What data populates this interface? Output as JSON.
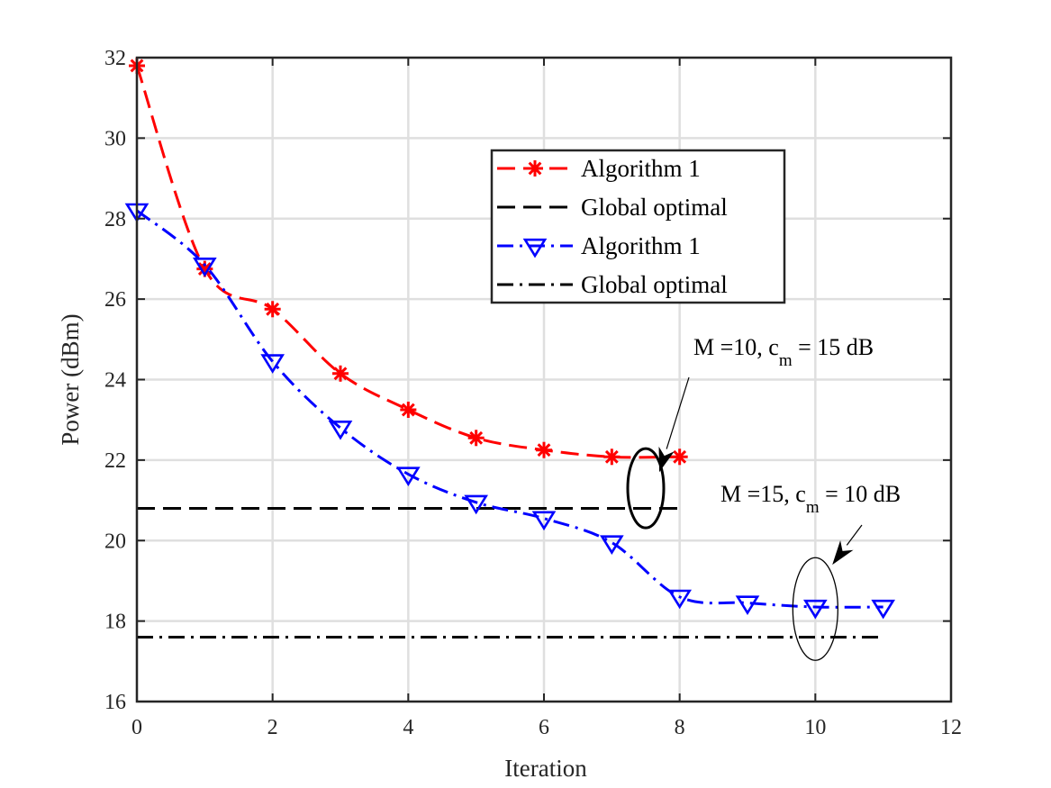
{
  "chart_data": {
    "type": "line",
    "xlabel": "Iteration",
    "ylabel": "Power (dBm)",
    "xlim": [
      0,
      12
    ],
    "ylim": [
      16,
      32
    ],
    "xticks": [
      0,
      2,
      4,
      6,
      8,
      10,
      12
    ],
    "yticks": [
      16,
      18,
      20,
      22,
      24,
      26,
      28,
      30,
      32
    ],
    "grid": true,
    "legend_position": "upper-center",
    "series": [
      {
        "name": "Algorithm 1",
        "group": "M=10",
        "color": "#ff0000",
        "line_style": "dashed",
        "marker": "asterisk",
        "x": [
          0,
          1,
          2,
          3,
          4,
          5,
          6,
          7,
          8
        ],
        "values": [
          31.8,
          26.75,
          25.75,
          24.15,
          23.25,
          22.55,
          22.25,
          22.08,
          22.08
        ]
      },
      {
        "name": "Global optimal",
        "group": "M=10",
        "color": "#000000",
        "line_style": "dashed",
        "marker": "none",
        "x": [
          0,
          8
        ],
        "values": [
          20.8,
          20.8
        ]
      },
      {
        "name": "Algorithm 1",
        "group": "M=15",
        "color": "#0000ff",
        "line_style": "dashdot",
        "marker": "triangle-down",
        "x": [
          0,
          1,
          2,
          3,
          4,
          5,
          6,
          7,
          8,
          9,
          10,
          11
        ],
        "values": [
          28.2,
          26.85,
          24.45,
          22.8,
          21.65,
          20.95,
          20.55,
          19.95,
          18.6,
          18.45,
          18.35,
          18.35
        ]
      },
      {
        "name": "Global optimal",
        "group": "M=15",
        "color": "#000000",
        "line_style": "dashdot",
        "marker": "none",
        "x": [
          0,
          11
        ],
        "values": [
          17.6,
          17.6
        ]
      }
    ],
    "annotations": [
      {
        "group": "M=10",
        "text_main": "M =10, c",
        "text_sub": "m",
        "text_tail": " = 15 dB",
        "ellipse_center": [
          7.5,
          21.3
        ],
        "arrow_to": [
          7.7,
          21.7
        ]
      },
      {
        "group": "M=15",
        "text_main": "M =15, c",
        "text_sub": "m",
        "text_tail": " = 10 dB",
        "ellipse_center": [
          10,
          18.3
        ],
        "arrow_to": [
          10.25,
          19.4
        ]
      }
    ]
  }
}
